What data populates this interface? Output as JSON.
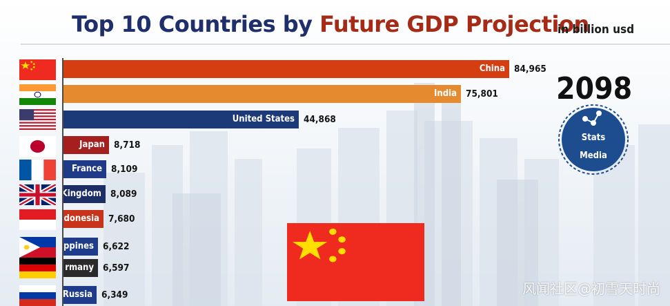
{
  "header": {
    "title_part1": "Top 10 Countries by",
    "title_part2": "Future GDP Projection",
    "unit_note": "in billion usd"
  },
  "year": "2098",
  "logo": {
    "line1": "Stats",
    "line2": "Media"
  },
  "watermark": "风闻社区@初雪天时尚",
  "chart_data": {
    "type": "bar",
    "orientation": "horizontal",
    "title": "Top 10 Countries by Future GDP Projection",
    "unit": "in billion usd",
    "categories": [
      "China",
      "India",
      "United States",
      "Japan",
      "France",
      "United Kingdom",
      "Indonesia",
      "Philippines",
      "Germany",
      "Russia"
    ],
    "values": [
      84965,
      75801,
      44868,
      8718,
      8109,
      8089,
      7680,
      6622,
      6597,
      6349
    ],
    "value_labels": [
      "84,965",
      "75,801",
      "44,868",
      "8,718",
      "8,109",
      "8,089",
      "7,680",
      "6,622",
      "6,597",
      "6,349"
    ],
    "visible_bar_labels": [
      "China",
      "India",
      "United States",
      "Japan",
      "France",
      "Kingdom",
      "donesia",
      "ppines",
      "rmany",
      "Russia"
    ],
    "flags": [
      "china-flag",
      "india-flag",
      "usa-flag",
      "japan-flag",
      "france-flag",
      "uk-flag",
      "indonesia-flag",
      "philippines-flag",
      "germany-flag",
      "russia-flag"
    ],
    "colors": [
      "#d53e11",
      "#e58a2e",
      "#1d3a78",
      "#a3201e",
      "#1f3a87",
      "#1d2e66",
      "#c8331b",
      "#1f3c8a",
      "#2a2a2a",
      "#1f3c8a"
    ],
    "xlim": [
      0,
      85000
    ],
    "grid": false,
    "legend": "none",
    "current_leader_flag": "china-flag"
  }
}
